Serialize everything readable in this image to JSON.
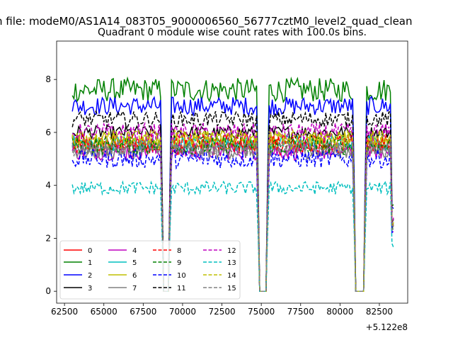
{
  "figure": {
    "suptitle": "n file: modeM0/AS1A14_083T05_9000006560_56777cztM0_level2_quad_clean",
    "title": "Quadrant 0 module wise count rates with 100.0s bins."
  },
  "chart_data": {
    "type": "line",
    "title": "Quadrant 0 module wise count rates with 100.0s bins.",
    "xlabel": "",
    "ylabel": "",
    "x_offset_label": "+5.122e8",
    "x_offset": 512200000,
    "xlim": [
      62000,
      84300
    ],
    "ylim": [
      -0.45,
      9.45
    ],
    "x_ticks": [
      62500,
      65000,
      67500,
      70000,
      72500,
      75000,
      77500,
      80000,
      82500
    ],
    "x_tick_labels": [
      "62500",
      "65000",
      "67500",
      "70000",
      "72500",
      "75000",
      "77500",
      "80000",
      "82500"
    ],
    "y_ticks": [
      0,
      2,
      4,
      6,
      8
    ],
    "y_tick_labels": [
      "0",
      "2",
      "4",
      "6",
      "8"
    ],
    "x_start": 63000,
    "x_end": 83400,
    "bin": 100,
    "segments": [
      [
        63000,
        68700
      ],
      [
        69200,
        74800
      ],
      [
        75400,
        80900
      ],
      [
        81600,
        83400
      ]
    ],
    "gaps": [
      [
        68800,
        69100
      ],
      [
        74900,
        75300
      ],
      [
        81000,
        81500
      ]
    ],
    "grid": false,
    "legend": {
      "location": "lower-left",
      "columns": 4
    },
    "series": [
      {
        "name": "0",
        "color": "#ff0000",
        "style": "solid",
        "mean": 5.5,
        "amplitude": 0.35
      },
      {
        "name": "1",
        "color": "#008000",
        "style": "solid",
        "mean": 7.6,
        "amplitude": 0.45
      },
      {
        "name": "2",
        "color": "#0000ff",
        "style": "solid",
        "mean": 7.0,
        "amplitude": 0.35
      },
      {
        "name": "3",
        "color": "#000000",
        "style": "solid",
        "mean": 6.0,
        "amplitude": 0.25
      },
      {
        "name": "4",
        "color": "#bf00bf",
        "style": "solid",
        "mean": 5.3,
        "amplitude": 0.35
      },
      {
        "name": "5",
        "color": "#00bfbf",
        "style": "solid",
        "mean": 5.6,
        "amplitude": 0.3
      },
      {
        "name": "6",
        "color": "#bfbf00",
        "style": "solid",
        "mean": 5.7,
        "amplitude": 0.35
      },
      {
        "name": "7",
        "color": "#808080",
        "style": "solid",
        "mean": 5.3,
        "amplitude": 0.3
      },
      {
        "name": "8",
        "color": "#ff0000",
        "style": "dashed",
        "mean": 5.6,
        "amplitude": 0.35
      },
      {
        "name": "9",
        "color": "#008000",
        "style": "dashed",
        "mean": 5.5,
        "amplitude": 0.35
      },
      {
        "name": "10",
        "color": "#0000ff",
        "style": "dashed",
        "mean": 5.0,
        "amplitude": 0.35
      },
      {
        "name": "11",
        "color": "#000000",
        "style": "dashed",
        "mean": 6.5,
        "amplitude": 0.3
      },
      {
        "name": "12",
        "color": "#bf00bf",
        "style": "dashed",
        "mean": 6.0,
        "amplitude": 0.35
      },
      {
        "name": "13",
        "color": "#00bfbf",
        "style": "dashed",
        "mean": 3.9,
        "amplitude": 0.25
      },
      {
        "name": "14",
        "color": "#bfbf00",
        "style": "dashed",
        "mean": 5.8,
        "amplitude": 0.3
      },
      {
        "name": "15",
        "color": "#808080",
        "style": "dashed",
        "mean": 5.4,
        "amplitude": 0.3
      }
    ]
  }
}
